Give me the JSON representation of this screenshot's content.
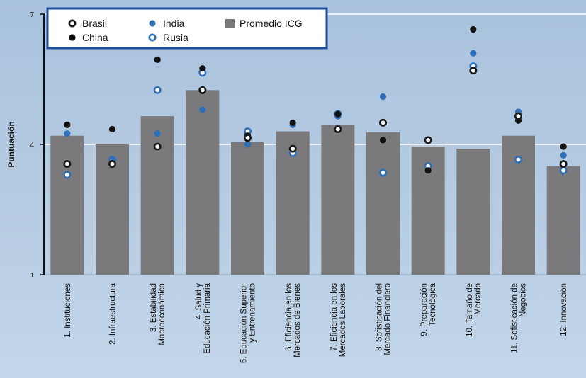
{
  "chart_data": {
    "type": "bar",
    "ylabel": "Puntuación",
    "xlabel": "",
    "ylim": [
      1,
      7
    ],
    "yticks": [
      1,
      4,
      7
    ],
    "grid": "horizontal",
    "legend_placement": "top-left",
    "categories": [
      [
        "1. Instituciones"
      ],
      [
        "2. Infraestructura"
      ],
      [
        "3. Estabilidad",
        "Macroeconómica"
      ],
      [
        "4. Salud y",
        "Educación Primaria"
      ],
      [
        "5. Educación Superior",
        "y Entrenamiento"
      ],
      [
        "6. Eficiencia en los",
        "Mercados de Bienes"
      ],
      [
        "7. Eficiencia en los",
        "Mercados  Laborales"
      ],
      [
        "8. Sofisticación del",
        "Mercado Financiero"
      ],
      [
        "9. Preparación",
        "Tecnológica"
      ],
      [
        "10. Tamaño de",
        "Mercado"
      ],
      [
        "11. Sofisticación de",
        "Negocios"
      ],
      [
        "12. Innovación"
      ]
    ],
    "series": [
      {
        "name": "Promedio ICG",
        "kind": "bar",
        "values": [
          4.2,
          4.0,
          4.65,
          5.25,
          4.05,
          4.3,
          4.45,
          4.28,
          3.95,
          3.9,
          4.2,
          3.5
        ]
      },
      {
        "name": "Brasil",
        "kind": "marker",
        "values": [
          3.55,
          3.55,
          3.95,
          5.25,
          4.15,
          3.9,
          4.35,
          4.5,
          4.1,
          5.7,
          4.65,
          3.55
        ]
      },
      {
        "name": "China",
        "kind": "marker",
        "values": [
          4.45,
          4.35,
          5.95,
          5.75,
          4.2,
          4.5,
          4.7,
          4.1,
          3.4,
          6.65,
          4.55,
          3.95
        ]
      },
      {
        "name": "India",
        "kind": "marker",
        "values": [
          4.25,
          3.65,
          4.25,
          4.8,
          4.0,
          4.45,
          4.65,
          5.1,
          3.4,
          6.1,
          4.75,
          3.75
        ]
      },
      {
        "name": "Rusia",
        "kind": "marker",
        "values": [
          3.3,
          3.65,
          5.25,
          5.65,
          4.3,
          3.8,
          4.7,
          3.35,
          3.5,
          5.8,
          3.65,
          3.4
        ]
      }
    ],
    "colors": {
      "bar": "#7a7a7c",
      "Brasil": "#1a1a1a",
      "China": "#111111",
      "India": "#2e6fb8",
      "Rusia": "#2e6fb8",
      "axis": "#111111",
      "grid": "#ffffff",
      "legend_border": "#1f4f9c",
      "legend_bg": "#ffffff"
    }
  },
  "legend": {
    "brasil": "Brasil",
    "china": "China",
    "india": "India",
    "rusia": "Rusia",
    "promedio": "Promedio ICG"
  }
}
